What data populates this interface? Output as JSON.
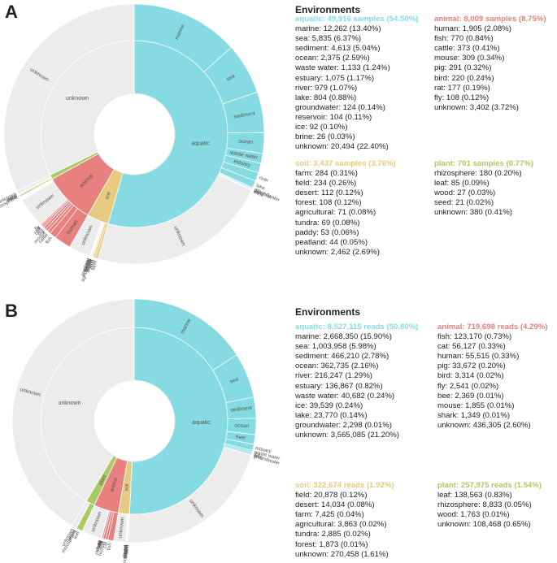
{
  "colors": {
    "aquatic": "#86dbe2",
    "animal": "#e8807f",
    "soil": "#e6ca7f",
    "plant": "#aacb63",
    "unknown": "#ececec",
    "edge": "#ffffff"
  },
  "panels": [
    {
      "letter": "A",
      "env_title": "Environments",
      "groups": [
        {
          "key": "aquatic",
          "title": "aquatic: 49,916 samples (54.50%)",
          "items": [
            "marine: 12,262 (13.40%)",
            "sea: 5,835 (6.37%)",
            "sediment: 4,613 (5.04%)",
            "ocean: 2,375 (2.59%)",
            "waste water: 1,133 (1.24%)",
            "estuary: 1,075 (1.17%)",
            "river: 979 (1.07%)",
            "lake: 804 (0.88%)",
            "groundwater: 124 (0.14%)",
            "reservoir: 104 (0.11%)",
            "ice: 92 (0.10%)",
            "brine: 26 (0.03%)",
            "unknown: 20,494 (22.40%)"
          ]
        },
        {
          "key": "animal",
          "title": "animal: 8,009 samples (8.75%)",
          "items": [
            "human: 1,905 (2.08%)",
            "fish: 770 (0.84%)",
            "cattle: 373 (0.41%)",
            "mouse: 309 (0.34%)",
            "pig: 291 (0.32%)",
            "bird: 220 (0.24%)",
            "rat: 177 (0.19%)",
            "fly: 108 (0.12%)",
            "unknown: 3,402 (3.72%)"
          ]
        },
        {
          "key": "soil",
          "title": "soil: 3,437 samples (3.76%)",
          "items": [
            "farm: 284 (0.31%)",
            "field: 234 (0.26%)",
            "desert: 112 (0.12%)",
            "forest: 108 (0.12%)",
            "agricultural: 71 (0.08%)",
            "tundra: 69 (0.08%)",
            "paddy: 53 (0.06%)",
            "peatland: 44 (0.05%)",
            "unknown: 2,462 (2.69%)"
          ]
        },
        {
          "key": "plant",
          "title": "plant: 701 samples (0.77%)",
          "items": [
            "rhizosphere: 180 (0.20%)",
            "leaf: 85 (0.09%)",
            "wood: 27 (0.03%)",
            "seed: 21 (0.02%)",
            "unknown: 380 (0.41%)"
          ]
        }
      ],
      "chart_data": {
        "type": "sunburst",
        "title": "Environments",
        "inner": [
          {
            "name": "aquatic",
            "value": 54.5
          },
          {
            "name": "soil",
            "value": 3.76
          },
          {
            "name": "animal",
            "value": 8.75
          },
          {
            "name": "plant",
            "value": 0.77
          },
          {
            "name": "unknown",
            "value": 32.22
          }
        ],
        "outer": [
          {
            "name": "marine",
            "parent": "aquatic",
            "value": 13.4
          },
          {
            "name": "sea",
            "parent": "aquatic",
            "value": 6.37
          },
          {
            "name": "sediment",
            "parent": "aquatic",
            "value": 5.04
          },
          {
            "name": "ocean",
            "parent": "aquatic",
            "value": 2.59
          },
          {
            "name": "waste water",
            "parent": "aquatic",
            "value": 1.24
          },
          {
            "name": "estuary",
            "parent": "aquatic",
            "value": 1.17
          },
          {
            "name": "river",
            "parent": "aquatic",
            "value": 1.07
          },
          {
            "name": "lake",
            "parent": "aquatic",
            "value": 0.88
          },
          {
            "name": "groundwater",
            "parent": "aquatic",
            "value": 0.14
          },
          {
            "name": "reservoir",
            "parent": "aquatic",
            "value": 0.11
          },
          {
            "name": "ice",
            "parent": "aquatic",
            "value": 0.1
          },
          {
            "name": "brine",
            "parent": "aquatic",
            "value": 0.03
          },
          {
            "name": "unknown",
            "parent": "aquatic",
            "value": 22.4
          },
          {
            "name": "farm",
            "parent": "soil",
            "value": 0.31
          },
          {
            "name": "field",
            "parent": "soil",
            "value": 0.26
          },
          {
            "name": "desert",
            "parent": "soil",
            "value": 0.12
          },
          {
            "name": "forest",
            "parent": "soil",
            "value": 0.12
          },
          {
            "name": "agricultural",
            "parent": "soil",
            "value": 0.08
          },
          {
            "name": "tundra",
            "parent": "soil",
            "value": 0.08
          },
          {
            "name": "paddy",
            "parent": "soil",
            "value": 0.06
          },
          {
            "name": "peatland",
            "parent": "soil",
            "value": 0.05
          },
          {
            "name": "unknown",
            "parent": "soil",
            "value": 2.69
          },
          {
            "name": "human",
            "parent": "animal",
            "value": 2.08
          },
          {
            "name": "fish",
            "parent": "animal",
            "value": 0.84
          },
          {
            "name": "cattle",
            "parent": "animal",
            "value": 0.41
          },
          {
            "name": "mouse",
            "parent": "animal",
            "value": 0.34
          },
          {
            "name": "pig",
            "parent": "animal",
            "value": 0.32
          },
          {
            "name": "bird",
            "parent": "animal",
            "value": 0.24
          },
          {
            "name": "rat",
            "parent": "animal",
            "value": 0.19
          },
          {
            "name": "fly",
            "parent": "animal",
            "value": 0.12
          },
          {
            "name": "unknown",
            "parent": "animal",
            "value": 3.72
          },
          {
            "name": "rhizosphere",
            "parent": "plant",
            "value": 0.2
          },
          {
            "name": "leaf",
            "parent": "plant",
            "value": 0.09
          },
          {
            "name": "wood",
            "parent": "plant",
            "value": 0.03
          },
          {
            "name": "seed",
            "parent": "plant",
            "value": 0.02
          },
          {
            "name": "unknown",
            "parent": "plant",
            "value": 0.41
          },
          {
            "name": "unknown",
            "parent": "unknown",
            "value": 32.22
          }
        ]
      }
    },
    {
      "letter": "B",
      "env_title": "Environments",
      "groups": [
        {
          "key": "aquatic",
          "title": "aquatic: 8,527,115 reads (50.80%)",
          "items": [
            "marine: 2,668,350 (15.90%)",
            "sea: 1,003,958 (5.98%)",
            "sediment: 466,210 (2.78%)",
            "ocean: 362,735 (2.16%)",
            "river: 216,247 (1.29%)",
            "estuary: 136,867 (0.82%)",
            "waste water: 40,682 (0.24%)",
            "ice: 39,539 (0.24%)",
            "lake: 23,770 (0.14%)",
            "groundwater: 2,298 (0.01%)",
            "unknown: 3,565,085 (21.20%)"
          ]
        },
        {
          "key": "animal",
          "title": "animal: 719,698 reads (4.29%)",
          "items": [
            "fish: 123,170 (0.73%)",
            "cat: 56,127 (0.33%)",
            "human: 55,515 (0.33%)",
            "pig: 33,672 (0.20%)",
            "bird: 3,314 (0.02%)",
            "fly: 2,541 (0.02%)",
            "bee: 2,369 (0.01%)",
            "mouse: 1,855 (0.01%)",
            "shark: 1,349 (0.01%)",
            "unknown: 436,305 (2.60%)"
          ]
        },
        {
          "key": "soil",
          "title": "soil: 322,674 reads (1.92%)",
          "items": [
            "field: 20,878 (0.12%)",
            "desert: 14,034 (0.08%)",
            "farm: 7,425 (0.04%)",
            "agricultural: 3,863 (0.02%)",
            "tundra: 2,885 (0.02%)",
            "forest: 1,873 (0.01%)",
            "unknown: 270,458 (1.61%)"
          ]
        },
        {
          "key": "plant",
          "title": "plant: 257,975 reads (1.54%)",
          "items": [
            "leaf: 138,563 (0.83%)",
            "rhizosphere: 8,833 (0.05%)",
            "wood: 1,763 (0.01%)",
            "unknown: 108,468 (0.65%)"
          ]
        }
      ],
      "chart_data": {
        "type": "sunburst",
        "title": "Environments",
        "inner": [
          {
            "name": "aquatic",
            "value": 50.8
          },
          {
            "name": "soil",
            "value": 1.92
          },
          {
            "name": "animal",
            "value": 4.29
          },
          {
            "name": "plant",
            "value": 1.54
          },
          {
            "name": "unknown",
            "value": 41.45
          }
        ],
        "outer": [
          {
            "name": "marine",
            "parent": "aquatic",
            "value": 15.9
          },
          {
            "name": "sea",
            "parent": "aquatic",
            "value": 5.98
          },
          {
            "name": "sediment",
            "parent": "aquatic",
            "value": 2.78
          },
          {
            "name": "ocean",
            "parent": "aquatic",
            "value": 2.16
          },
          {
            "name": "river",
            "parent": "aquatic",
            "value": 1.29
          },
          {
            "name": "estuary",
            "parent": "aquatic",
            "value": 0.82
          },
          {
            "name": "waste water",
            "parent": "aquatic",
            "value": 0.24
          },
          {
            "name": "ice",
            "parent": "aquatic",
            "value": 0.24
          },
          {
            "name": "lake",
            "parent": "aquatic",
            "value": 0.14
          },
          {
            "name": "groundwater",
            "parent": "aquatic",
            "value": 0.01
          },
          {
            "name": "unknown",
            "parent": "aquatic",
            "value": 21.2
          },
          {
            "name": "field",
            "parent": "soil",
            "value": 0.12
          },
          {
            "name": "desert",
            "parent": "soil",
            "value": 0.08
          },
          {
            "name": "farm",
            "parent": "soil",
            "value": 0.04
          },
          {
            "name": "agricultural",
            "parent": "soil",
            "value": 0.02
          },
          {
            "name": "tundra",
            "parent": "soil",
            "value": 0.02
          },
          {
            "name": "forest",
            "parent": "soil",
            "value": 0.01
          },
          {
            "name": "unknown",
            "parent": "soil",
            "value": 1.61
          },
          {
            "name": "fish",
            "parent": "animal",
            "value": 0.73
          },
          {
            "name": "cat",
            "parent": "animal",
            "value": 0.33
          },
          {
            "name": "human",
            "parent": "animal",
            "value": 0.33
          },
          {
            "name": "pig",
            "parent": "animal",
            "value": 0.2
          },
          {
            "name": "bird",
            "parent": "animal",
            "value": 0.02
          },
          {
            "name": "fly",
            "parent": "animal",
            "value": 0.02
          },
          {
            "name": "bee",
            "parent": "animal",
            "value": 0.01
          },
          {
            "name": "mouse",
            "parent": "animal",
            "value": 0.01
          },
          {
            "name": "shark",
            "parent": "animal",
            "value": 0.01
          },
          {
            "name": "unknown",
            "parent": "animal",
            "value": 2.6
          },
          {
            "name": "leaf",
            "parent": "plant",
            "value": 0.83
          },
          {
            "name": "rhizosphere",
            "parent": "plant",
            "value": 0.05
          },
          {
            "name": "wood",
            "parent": "plant",
            "value": 0.01
          },
          {
            "name": "unknown",
            "parent": "plant",
            "value": 0.65
          },
          {
            "name": "unknown",
            "parent": "unknown",
            "value": 41.45
          }
        ]
      }
    }
  ]
}
